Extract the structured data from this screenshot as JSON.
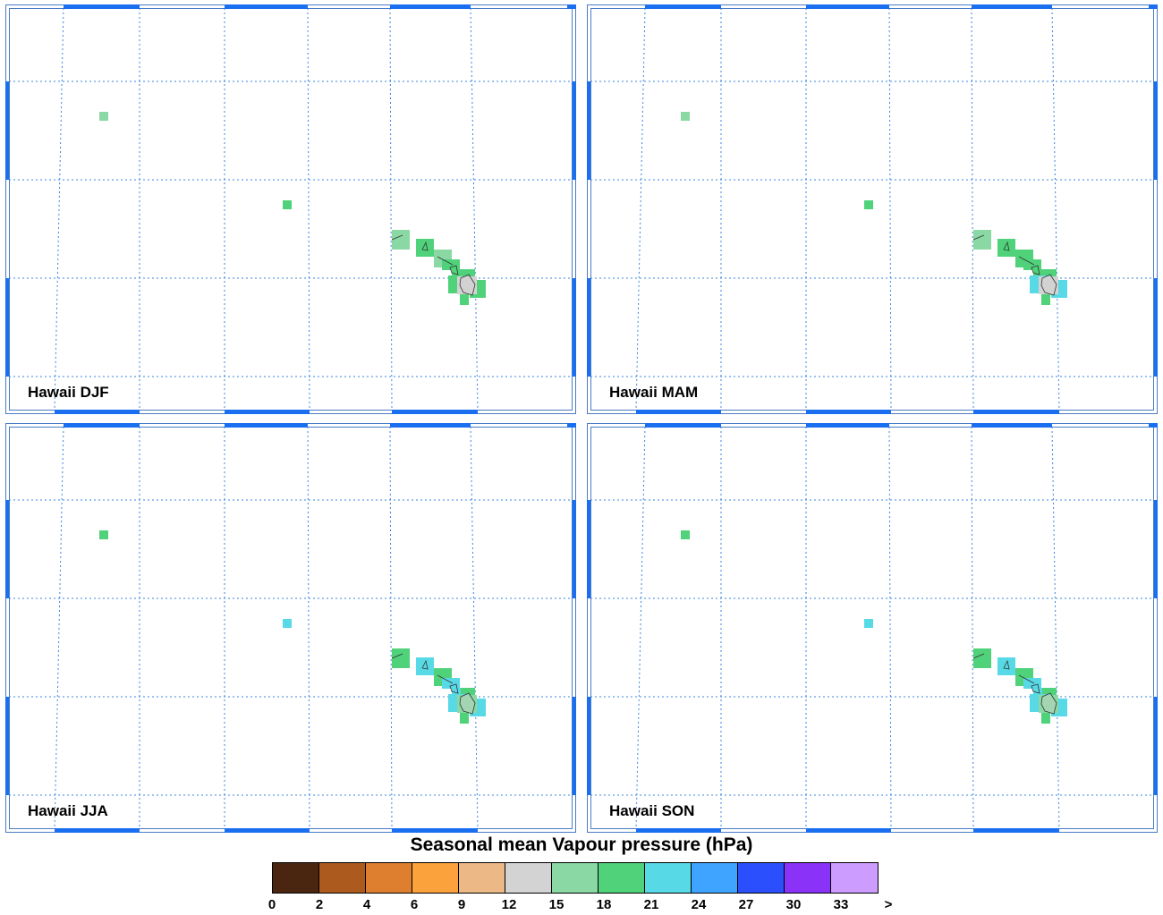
{
  "panels": [
    {
      "id": "p-djf",
      "label": "Hawaii DJF",
      "cells": {
        "niihau": 16,
        "kauai": 20,
        "oahu": 16,
        "molokai": 19,
        "lanai": 19,
        "maui": 19,
        "maui_e": 19,
        "hawaii": 13,
        "hawaii_e": 19,
        "hawaii_s": 19,
        "nw1": 16,
        "nw2": 19
      }
    },
    {
      "id": "p-mam",
      "label": "Hawaii MAM",
      "cells": {
        "niihau": 16,
        "kauai": 20,
        "oahu": 19,
        "molokai": 19,
        "lanai": 19,
        "maui": 19,
        "maui_e": 22,
        "hawaii": 13,
        "hawaii_e": 22,
        "hawaii_s": 19,
        "nw1": 16,
        "nw2": 19
      }
    },
    {
      "id": "p-jja",
      "label": "Hawaii JJA",
      "cells": {
        "niihau": 20,
        "kauai": 22,
        "oahu": 20,
        "molokai": 22,
        "lanai": 22,
        "maui": 20,
        "maui_e": 22,
        "hawaii": 17,
        "hawaii_e": 22,
        "hawaii_s": 20,
        "nw1": 20,
        "nw2": 22
      }
    },
    {
      "id": "p-son",
      "label": "Hawaii SON",
      "cells": {
        "niihau": 20,
        "kauai": 22,
        "oahu": 20,
        "molokai": 22,
        "lanai": 22,
        "maui": 20,
        "maui_e": 22,
        "hawaii": 17,
        "hawaii_e": 22,
        "hawaii_s": 20,
        "nw1": 20,
        "nw2": 22
      }
    }
  ],
  "legend": {
    "title": "Seasonal mean Vapour pressure (hPa)",
    "ticks": [
      "0",
      "2",
      "4",
      "6",
      "9",
      "12",
      "15",
      "18",
      "21",
      "24",
      "27",
      "30",
      "33",
      ">"
    ],
    "colors": [
      "#4a2610",
      "#ad5a1f",
      "#dd7f2e",
      "#fba23c",
      "#ebb886",
      "#d3d3d3",
      "#8ad8a3",
      "#4fd27a",
      "#58d9e6",
      "#3ea4ff",
      "#2c4ffd",
      "#8a32f8",
      "#cc9cff"
    ]
  }
}
